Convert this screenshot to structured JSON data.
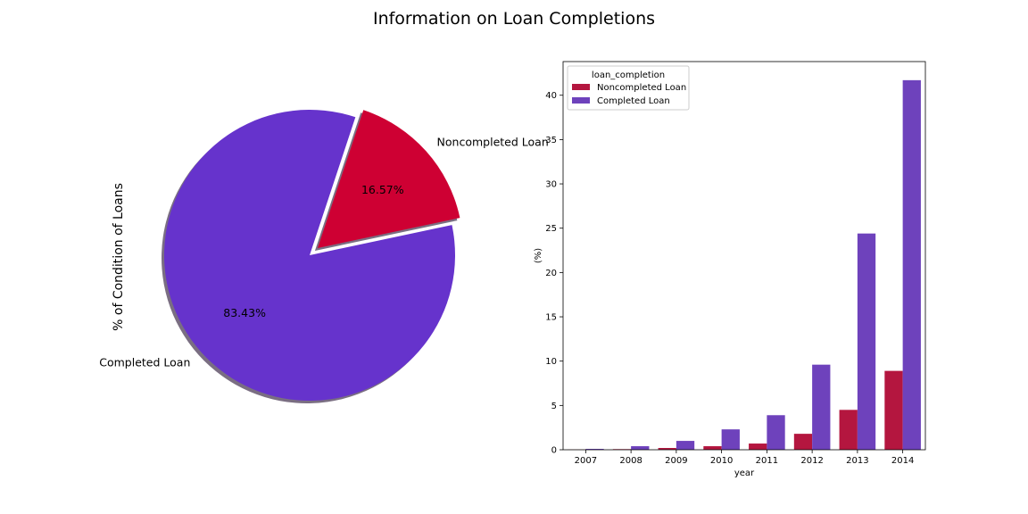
{
  "figure": {
    "title": "Information on Loan Completions"
  },
  "colors": {
    "noncompleted": "#CE0033",
    "completed": "#6633CC",
    "noncompleted_bar": "#B4163F",
    "completed_bar": "#6E42BC",
    "shadow": "#7A6E82"
  },
  "chart_data": [
    {
      "type": "pie",
      "ylabel": "% of Condition of Loans",
      "labels": [
        "Noncompleted Loan",
        "Completed Loan"
      ],
      "values": [
        16.57,
        83.43
      ],
      "autopct": [
        "16.57%",
        "83.43%"
      ],
      "exploded": "Noncompleted Loan",
      "shadow": true
    },
    {
      "type": "bar",
      "xlabel": "year",
      "ylabel": "(%)",
      "categories": [
        "2007",
        "2008",
        "2009",
        "2010",
        "2011",
        "2012",
        "2013",
        "2014"
      ],
      "ylim": [
        0,
        43.8
      ],
      "yticks": [
        0,
        5,
        10,
        15,
        20,
        25,
        30,
        35,
        40
      ],
      "legend": {
        "title": "loan_completion",
        "placement": "top-left"
      },
      "series": [
        {
          "name": "Noncompleted Loan",
          "values": [
            0.02,
            0.07,
            0.2,
            0.4,
            0.7,
            1.8,
            4.5,
            8.9
          ]
        },
        {
          "name": "Completed Loan",
          "values": [
            0.1,
            0.4,
            1.0,
            2.3,
            3.9,
            9.6,
            24.4,
            41.7
          ]
        }
      ]
    }
  ]
}
